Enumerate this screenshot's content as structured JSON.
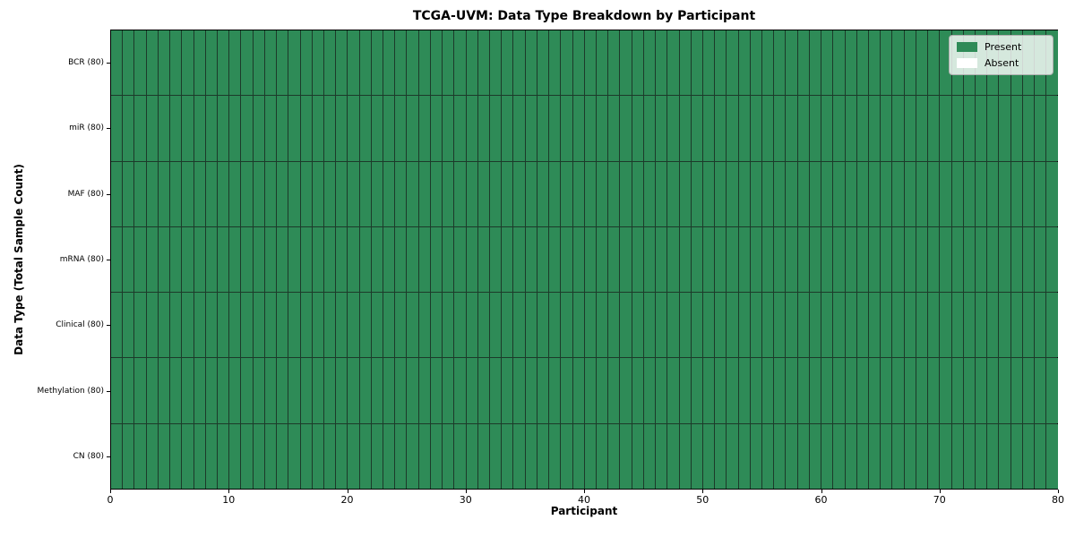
{
  "chart_data": {
    "type": "heatmap",
    "title": "TCGA-UVM: Data Type Breakdown by Participant",
    "xlabel": "Participant",
    "ylabel": "Data Type (Total Sample Count)",
    "xlim": [
      0,
      80
    ],
    "x_ticks": [
      0,
      10,
      20,
      30,
      40,
      50,
      60,
      70,
      80
    ],
    "n_participants": 80,
    "rows": [
      {
        "label": "BCR (80)",
        "data_type": "BCR",
        "total_sample_count": 80,
        "present_count": 80
      },
      {
        "label": "miR (80)",
        "data_type": "miR",
        "total_sample_count": 80,
        "present_count": 80
      },
      {
        "label": "MAF (80)",
        "data_type": "MAF",
        "total_sample_count": 80,
        "present_count": 80
      },
      {
        "label": "mRNA (80)",
        "data_type": "mRNA",
        "total_sample_count": 80,
        "present_count": 80
      },
      {
        "label": "Clinical (80)",
        "data_type": "Clinical",
        "total_sample_count": 80,
        "present_count": 80
      },
      {
        "label": "Methylation (80)",
        "data_type": "Methylation",
        "total_sample_count": 80,
        "present_count": 80
      },
      {
        "label": "CN (80)",
        "data_type": "CN",
        "total_sample_count": 80,
        "present_count": 80
      }
    ],
    "legend": {
      "position": "upper right",
      "entries": [
        {
          "label": "Present",
          "color": "#2e8b57"
        },
        {
          "label": "Absent",
          "color": "#ffffff"
        }
      ]
    },
    "colors": {
      "present": "#2e8b57",
      "absent": "#ffffff",
      "cell_edge": "#1c3a2a",
      "spine": "#000000",
      "background": "#ffffff"
    }
  }
}
